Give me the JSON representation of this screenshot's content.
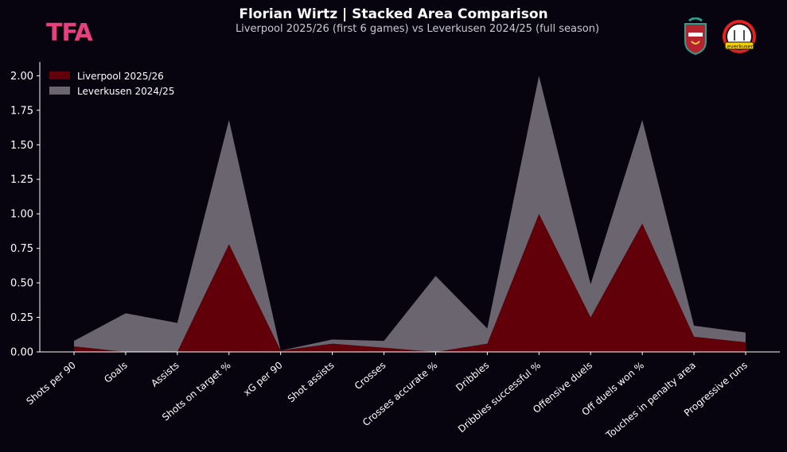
{
  "header": {
    "brand": "TFA",
    "title": "Florian Wirtz | Stacked Area Comparison",
    "subtitle": "Liverpool 2025/26 (first 6 games) vs Leverkusen 2024/25 (full season)",
    "logo_left_icon": "liverpool-crest-icon",
    "logo_right_icon": "leverkusen-crest-icon",
    "logo_right_text": "Leverkusen"
  },
  "colors": {
    "background": "#07030f",
    "liverpool": "#610009",
    "leverkusen": "#6b6570",
    "brand": "#e8407f"
  },
  "chart_data": {
    "type": "area",
    "stacked": true,
    "title": "Florian Wirtz | Stacked Area Comparison",
    "subtitle": "Liverpool 2025/26 (first 6 games) vs Leverkusen 2024/25 (full season)",
    "xlabel": "",
    "ylabel": "",
    "ylim": [
      0,
      2.1
    ],
    "yticks": [
      "0.00",
      "0.25",
      "0.50",
      "0.75",
      "1.00",
      "1.25",
      "1.50",
      "1.75",
      "2.00"
    ],
    "grid": false,
    "legend_position": "top-left",
    "categories": [
      "Shots per 90",
      "Goals",
      "Assists",
      "Shots on target %",
      "xG per 90",
      "Shot assists",
      "Crosses",
      "Crosses accurate %",
      "Dribbles",
      "Dribbles successful %",
      "Offensive duels",
      "Off duels won %",
      "Touches in penalty area",
      "Progressive runs"
    ],
    "series": [
      {
        "name": "Liverpool 2025/26",
        "color": "#610009",
        "values": [
          0.04,
          0.0,
          0.0,
          0.78,
          0.01,
          0.06,
          0.03,
          0.0,
          0.06,
          1.0,
          0.25,
          0.93,
          0.11,
          0.07
        ]
      },
      {
        "name": "Leverkusen 2024/25",
        "color": "#6b6570",
        "values": [
          0.04,
          0.28,
          0.21,
          0.9,
          0.0,
          0.03,
          0.05,
          0.55,
          0.11,
          1.0,
          0.24,
          0.75,
          0.08,
          0.07
        ]
      }
    ]
  }
}
